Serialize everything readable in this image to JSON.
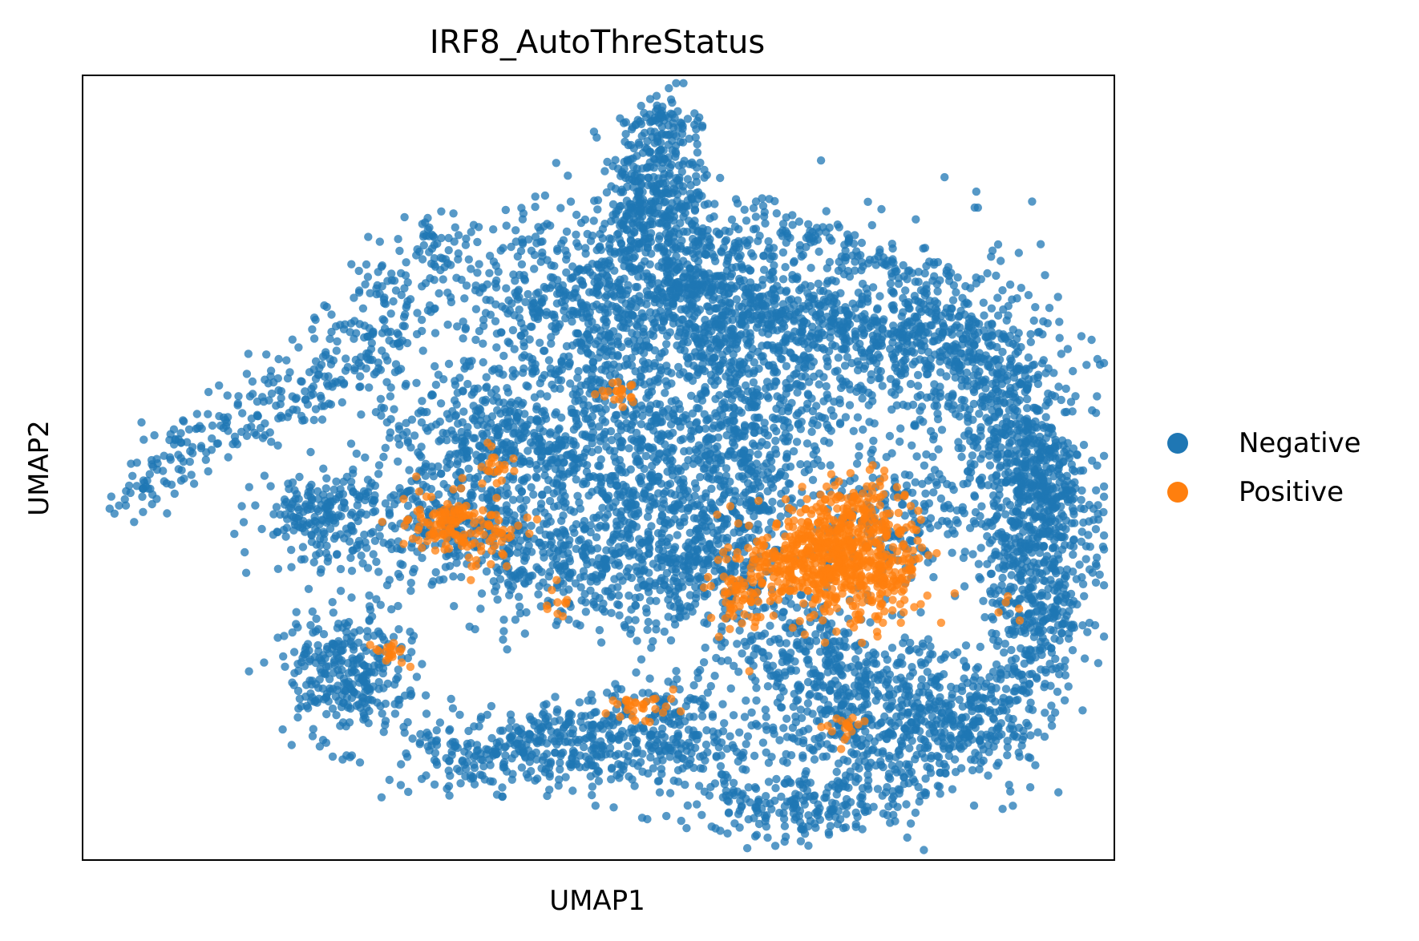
{
  "chart_data": {
    "type": "scatter",
    "title": "IRF8_AutoThreStatus",
    "xlabel": "UMAP1",
    "ylabel": "UMAP2",
    "grid": false,
    "ticks": false,
    "legend_position": "right",
    "series": [
      {
        "name": "Negative",
        "color": "#1f77b4",
        "clusters": [
          {
            "x": 0.56,
            "y": 0.86,
            "sx": 0.025,
            "sy": 0.06,
            "n": 240
          },
          {
            "x": 0.48,
            "y": 0.72,
            "sx": 0.08,
            "sy": 0.06,
            "n": 520
          },
          {
            "x": 0.6,
            "y": 0.72,
            "sx": 0.07,
            "sy": 0.05,
            "n": 420
          },
          {
            "x": 0.7,
            "y": 0.68,
            "sx": 0.06,
            "sy": 0.05,
            "n": 300
          },
          {
            "x": 0.83,
            "y": 0.64,
            "sx": 0.06,
            "sy": 0.08,
            "n": 420
          },
          {
            "x": 0.9,
            "y": 0.55,
            "sx": 0.03,
            "sy": 0.07,
            "n": 280
          },
          {
            "x": 0.4,
            "y": 0.55,
            "sx": 0.06,
            "sy": 0.05,
            "n": 320
          },
          {
            "x": 0.55,
            "y": 0.52,
            "sx": 0.06,
            "sy": 0.07,
            "n": 520
          },
          {
            "x": 0.66,
            "y": 0.55,
            "sx": 0.04,
            "sy": 0.06,
            "n": 260
          },
          {
            "x": 0.23,
            "y": 0.44,
            "sx": 0.03,
            "sy": 0.03,
            "n": 200
          },
          {
            "x": 0.37,
            "y": 0.43,
            "sx": 0.05,
            "sy": 0.04,
            "n": 320
          },
          {
            "x": 0.5,
            "y": 0.37,
            "sx": 0.07,
            "sy": 0.04,
            "n": 380
          },
          {
            "x": 0.61,
            "y": 0.38,
            "sx": 0.04,
            "sy": 0.05,
            "n": 260
          },
          {
            "x": 0.255,
            "y": 0.24,
            "sx": 0.03,
            "sy": 0.04,
            "n": 300
          },
          {
            "x": 0.46,
            "y": 0.14,
            "sx": 0.07,
            "sy": 0.03,
            "n": 300
          },
          {
            "x": 0.57,
            "y": 0.16,
            "sx": 0.04,
            "sy": 0.03,
            "n": 160
          },
          {
            "x": 0.74,
            "y": 0.2,
            "sx": 0.06,
            "sy": 0.05,
            "n": 380
          },
          {
            "x": 0.83,
            "y": 0.18,
            "sx": 0.06,
            "sy": 0.05,
            "n": 360
          },
          {
            "x": 0.92,
            "y": 0.36,
            "sx": 0.025,
            "sy": 0.07,
            "n": 320
          },
          {
            "x": 0.93,
            "y": 0.48,
            "sx": 0.02,
            "sy": 0.05,
            "n": 200
          },
          {
            "x": 0.68,
            "y": 0.07,
            "sx": 0.05,
            "sy": 0.02,
            "n": 160
          },
          {
            "x": 0.79,
            "y": 0.43,
            "sx": 0.04,
            "sy": 0.04,
            "n": 180
          },
          {
            "x": 0.7,
            "y": 0.28,
            "sx": 0.03,
            "sy": 0.03,
            "n": 120
          }
        ],
        "arcs": [
          {
            "points": [
              [
                0.045,
                0.44
              ],
              [
                0.12,
                0.56
              ],
              [
                0.25,
                0.67
              ],
              [
                0.36,
                0.8
              ]
            ],
            "n": 240,
            "spread": 0.018
          },
          {
            "points": [
              [
                0.12,
                0.52
              ],
              [
                0.24,
                0.6
              ],
              [
                0.32,
                0.68
              ]
            ],
            "n": 120,
            "spread": 0.015
          },
          {
            "points": [
              [
                0.56,
                0.96
              ],
              [
                0.53,
                0.82
              ],
              [
                0.5,
                0.64
              ],
              [
                0.44,
                0.45
              ]
            ],
            "n": 220,
            "spread": 0.015
          },
          {
            "points": [
              [
                0.56,
                0.96
              ],
              [
                0.58,
                0.78
              ],
              [
                0.62,
                0.6
              ],
              [
                0.66,
                0.44
              ]
            ],
            "n": 200,
            "spread": 0.015
          },
          {
            "points": [
              [
                0.55,
                0.75
              ],
              [
                0.68,
                0.7
              ],
              [
                0.8,
                0.66
              ],
              [
                0.88,
                0.62
              ]
            ],
            "n": 200,
            "spread": 0.015
          },
          {
            "points": [
              [
                0.62,
                0.82
              ],
              [
                0.73,
                0.79
              ],
              [
                0.81,
                0.72
              ],
              [
                0.86,
                0.66
              ]
            ],
            "n": 160,
            "spread": 0.015
          },
          {
            "points": [
              [
                0.9,
                0.55
              ],
              [
                0.96,
                0.45
              ],
              [
                0.94,
                0.3
              ],
              [
                0.88,
                0.18
              ],
              [
                0.78,
                0.08
              ],
              [
                0.63,
                0.05
              ]
            ],
            "n": 320,
            "spread": 0.02
          },
          {
            "points": [
              [
                0.29,
                0.56
              ],
              [
                0.45,
                0.52
              ],
              [
                0.58,
                0.45
              ],
              [
                0.66,
                0.43
              ]
            ],
            "n": 160,
            "spread": 0.02
          },
          {
            "points": [
              [
                0.34,
                0.11
              ],
              [
                0.46,
                0.17
              ],
              [
                0.58,
                0.21
              ]
            ],
            "n": 140,
            "spread": 0.02
          }
        ]
      },
      {
        "name": "Positive",
        "color": "#ff7f0e",
        "clusters": [
          {
            "x": 0.7,
            "y": 0.38,
            "sx": 0.03,
            "sy": 0.03,
            "n": 260
          },
          {
            "x": 0.73,
            "y": 0.4,
            "sx": 0.025,
            "sy": 0.04,
            "n": 220
          },
          {
            "x": 0.77,
            "y": 0.36,
            "sx": 0.025,
            "sy": 0.03,
            "n": 160
          },
          {
            "x": 0.76,
            "y": 0.44,
            "sx": 0.02,
            "sy": 0.025,
            "n": 100
          },
          {
            "x": 0.64,
            "y": 0.34,
            "sx": 0.015,
            "sy": 0.025,
            "n": 60
          },
          {
            "x": 0.8,
            "y": 0.38,
            "sx": 0.01,
            "sy": 0.01,
            "n": 20
          },
          {
            "x": 0.35,
            "y": 0.43,
            "sx": 0.02,
            "sy": 0.02,
            "n": 90
          },
          {
            "x": 0.39,
            "y": 0.42,
            "sx": 0.02,
            "sy": 0.02,
            "n": 60
          },
          {
            "x": 0.395,
            "y": 0.5,
            "sx": 0.01,
            "sy": 0.015,
            "n": 20
          },
          {
            "x": 0.52,
            "y": 0.595,
            "sx": 0.01,
            "sy": 0.008,
            "n": 20
          },
          {
            "x": 0.54,
            "y": 0.195,
            "sx": 0.015,
            "sy": 0.01,
            "n": 30
          },
          {
            "x": 0.3,
            "y": 0.26,
            "sx": 0.012,
            "sy": 0.01,
            "n": 18
          },
          {
            "x": 0.74,
            "y": 0.17,
            "sx": 0.015,
            "sy": 0.01,
            "n": 18
          },
          {
            "x": 0.46,
            "y": 0.33,
            "sx": 0.01,
            "sy": 0.015,
            "n": 10
          },
          {
            "x": 0.9,
            "y": 0.32,
            "sx": 0.008,
            "sy": 0.01,
            "n": 5
          }
        ],
        "arcs": []
      }
    ]
  }
}
